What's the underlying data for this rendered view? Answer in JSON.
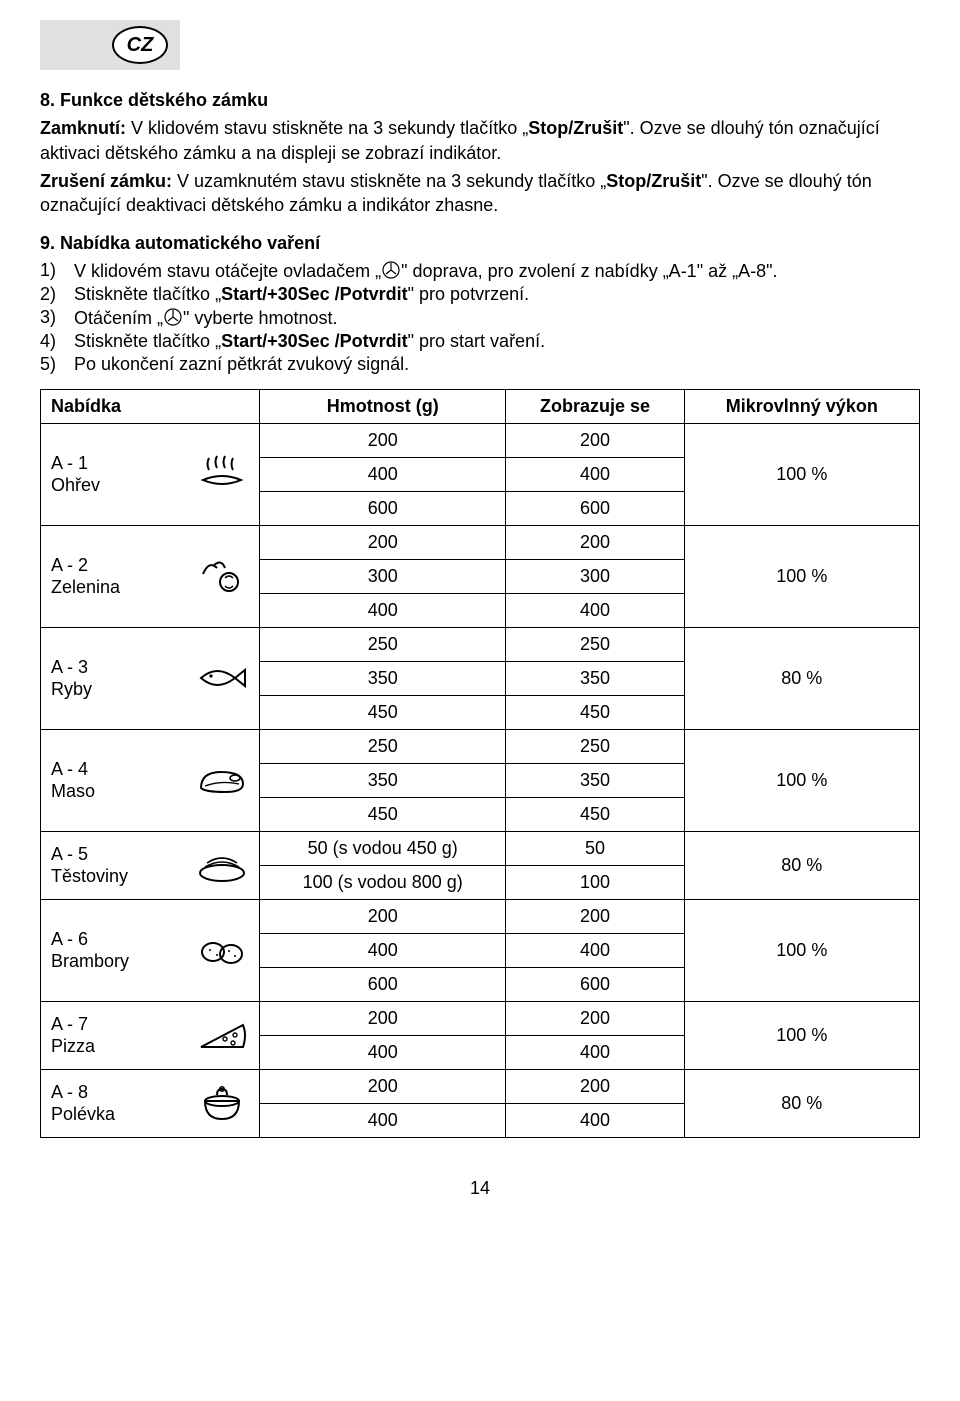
{
  "badge": "CZ",
  "page_number": "14",
  "section8": {
    "title": "8. Funkce dětského zámku",
    "lock_label": "Zamknutí:",
    "lock_text": " V klidovém stavu stiskněte na 3 sekundy tlačítko „",
    "lock_btn": "Stop/Zrušit",
    "lock_text2": "\". Ozve se dlouhý tón označující aktivaci dětského zámku a na displeji se zobrazí indikátor.",
    "unlock_label": "Zrušení zámku:",
    "unlock_text": " V uzamknutém stavu stiskněte na 3 sekundy tlačítko „",
    "unlock_btn": "Stop/Zrušit",
    "unlock_text2": "\". Ozve se dlouhý tón označující deaktivaci dětského zámku a indikátor zhasne."
  },
  "section9": {
    "title": "9. Nabídka automatického vaření",
    "items": [
      {
        "n": "1)",
        "pre": "V klidovém stavu otáčejte ovladačem „",
        "post": "\" doprava, pro zvolení z nabídky „A-1\" až „A-8\"."
      },
      {
        "n": "2)",
        "pre": "Stiskněte tlačítko „",
        "bold": "Start/+30Sec /Potvrdit",
        "post": "\" pro potvrzení."
      },
      {
        "n": "3)",
        "pre": "Otáčením „",
        "post": "\" vyberte hmotnost."
      },
      {
        "n": "4)",
        "pre": "Stiskněte tlačítko „",
        "bold": "Start/+30Sec /Potvrdit",
        "post": "\" pro start vaření."
      },
      {
        "n": "5)",
        "pre": "Po ukončení zazní pětkrát zvukový signál."
      }
    ]
  },
  "table": {
    "headers": {
      "menu": "Nabídka",
      "weight": "Hmotnost (g)",
      "display": "Zobrazuje se",
      "power": "Mikrovlnný výkon"
    },
    "groups": [
      {
        "label": "A - 1\nOhřev",
        "icon": "reheat",
        "rows": [
          [
            "200",
            "200"
          ],
          [
            "400",
            "400"
          ],
          [
            "600",
            "600"
          ]
        ],
        "power": "100 %"
      },
      {
        "label": "A - 2\nZelenina",
        "icon": "veg",
        "rows": [
          [
            "200",
            "200"
          ],
          [
            "300",
            "300"
          ],
          [
            "400",
            "400"
          ]
        ],
        "power": "100 %"
      },
      {
        "label": "A - 3\nRyby",
        "icon": "fish",
        "rows": [
          [
            "250",
            "250"
          ],
          [
            "350",
            "350"
          ],
          [
            "450",
            "450"
          ]
        ],
        "power": "80 %"
      },
      {
        "label": "A - 4\nMaso",
        "icon": "meat",
        "rows": [
          [
            "250",
            "250"
          ],
          [
            "350",
            "350"
          ],
          [
            "450",
            "450"
          ]
        ],
        "power": "100 %"
      },
      {
        "label": "A - 5\nTěstoviny",
        "icon": "pasta",
        "rows": [
          [
            "50 (s vodou 450 g)",
            "50"
          ],
          [
            "100 (s vodou 800 g)",
            "100"
          ]
        ],
        "power": "80 %"
      },
      {
        "label": "A - 6\nBrambory",
        "icon": "potato",
        "rows": [
          [
            "200",
            "200"
          ],
          [
            "400",
            "400"
          ],
          [
            "600",
            "600"
          ]
        ],
        "power": "100 %"
      },
      {
        "label": "A - 7\nPizza",
        "icon": "pizza",
        "rows": [
          [
            "200",
            "200"
          ],
          [
            "400",
            "400"
          ]
        ],
        "power": "100 %"
      },
      {
        "label": "A - 8\nPolévka",
        "icon": "soup",
        "rows": [
          [
            "200",
            "200"
          ],
          [
            "400",
            "400"
          ]
        ],
        "power": "80 %"
      }
    ]
  }
}
